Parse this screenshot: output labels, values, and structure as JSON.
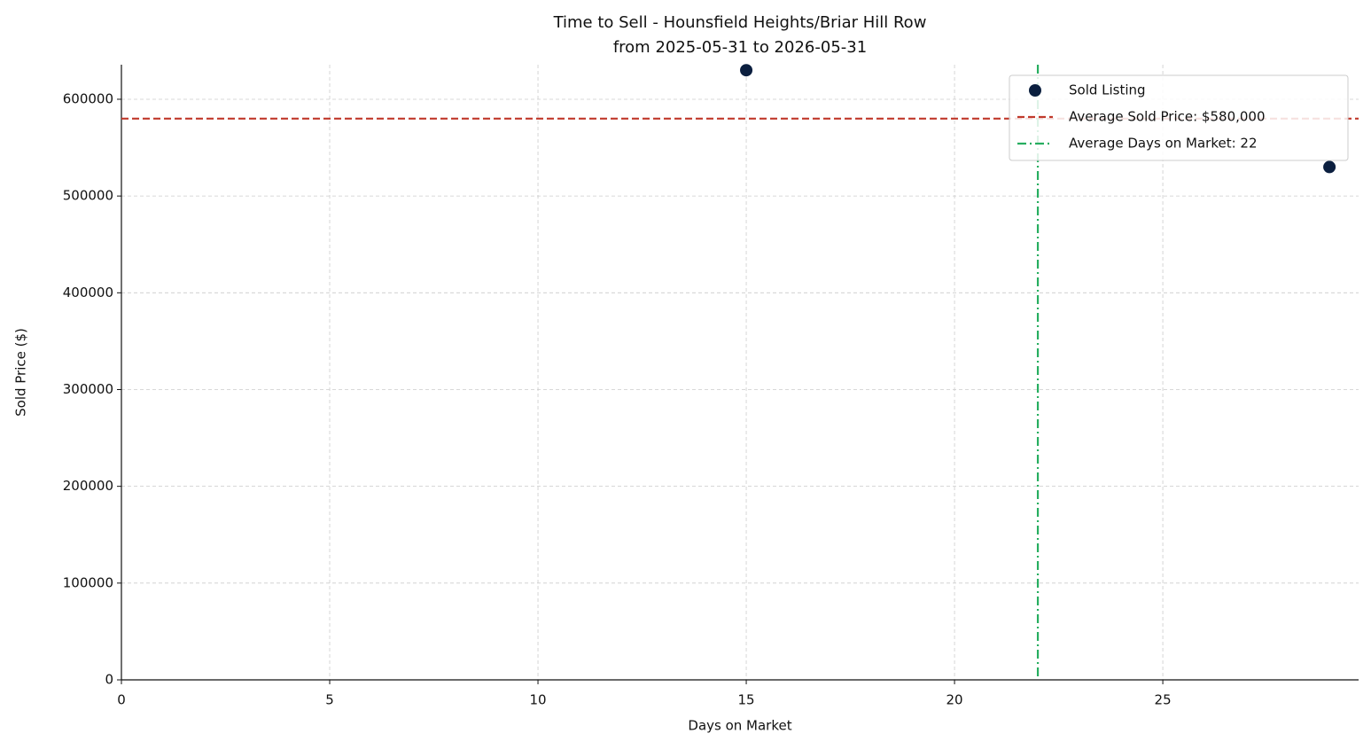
{
  "chart_data": {
    "type": "scatter",
    "title": "Time to Sell - Hounsfield Heights/Briar Hill Row",
    "subtitle": "from 2025-05-31 to 2026-05-31",
    "x_label": "Days on Market",
    "y_label": "Sold Price ($)",
    "series": [
      {
        "name": "Sold Listing",
        "color": "#0b1f3f",
        "x": [
          15,
          29
        ],
        "values": [
          630000,
          530000
        ]
      }
    ],
    "reference_lines": [
      {
        "name": "Average Sold Price: $580,000",
        "axis": "y",
        "value": 580000,
        "color": "#c0392b",
        "dash": "8,4"
      },
      {
        "name": "Average Days on Market: 22",
        "axis": "x",
        "value": 22,
        "color": "#27ae60",
        "dash": "10,4,2,4"
      }
    ],
    "xlim": [
      0,
      29.7
    ],
    "xticks": [
      0,
      5,
      10,
      15,
      20,
      25
    ],
    "ylim": [
      0,
      635700
    ],
    "yticks": [
      0,
      100000,
      200000,
      300000,
      400000,
      500000,
      600000
    ],
    "grid": true,
    "legend": "upper right"
  }
}
